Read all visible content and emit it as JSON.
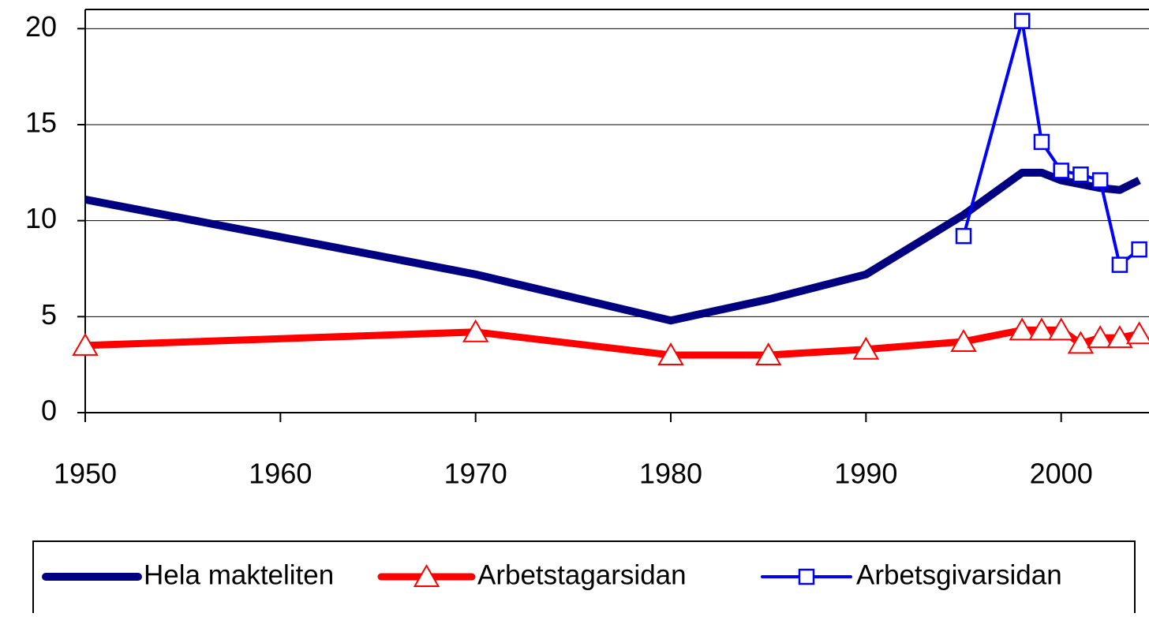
{
  "chart_data": {
    "type": "line",
    "x": [
      1950,
      1970,
      1980,
      1985,
      1990,
      1995,
      1998,
      1999,
      2000,
      2001,
      2002,
      2003,
      2004
    ],
    "series": [
      {
        "name": "Hela makteliten",
        "color": "#000080",
        "marker": "none",
        "values": [
          11.1,
          7.2,
          4.8,
          5.9,
          7.2,
          10.3,
          12.5,
          12.5,
          12.1,
          11.9,
          11.7,
          11.6,
          12.1
        ]
      },
      {
        "name": "Arbetstagarsidan",
        "color": "#ff0000",
        "marker": "triangle",
        "values": [
          3.5,
          4.2,
          3.0,
          3.0,
          3.3,
          3.7,
          4.3,
          4.3,
          4.3,
          3.6,
          3.9,
          3.9,
          4.1
        ]
      },
      {
        "name": "Arbetsgivarsidan",
        "color": "#0000ff",
        "marker": "square",
        "values": [
          null,
          null,
          null,
          null,
          null,
          9.2,
          20.4,
          14.1,
          12.6,
          12.4,
          12.1,
          7.7,
          8.5
        ]
      }
    ],
    "xlim": [
      1950,
      2004.5
    ],
    "xticks": [
      1950,
      1960,
      1970,
      1980,
      1990,
      2000
    ],
    "ylim": [
      0,
      21
    ],
    "yticks": [
      0,
      5,
      10,
      15,
      20
    ],
    "grid": true,
    "legend": "bottom"
  }
}
